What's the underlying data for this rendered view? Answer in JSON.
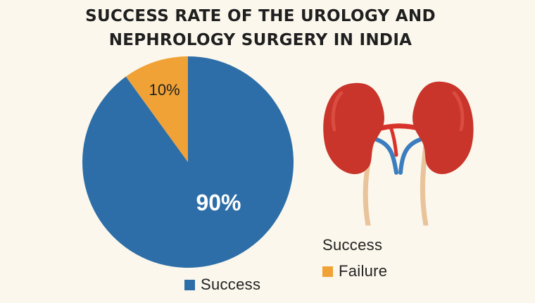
{
  "title_lines": [
    "SUCCESS RATE OF THE UROLOGY AND",
    "NEPHROLOGY SURGERY IN INDIA"
  ],
  "side_label": "Success",
  "colors": {
    "success": "#2d6ea8",
    "failure": "#f0a236",
    "kidney": "#c9342b",
    "artery": "#d8332b",
    "vein": "#3b7dbf",
    "ureter": "#e9c39a"
  },
  "icons": [
    "kidney-illustration-icon"
  ],
  "chart_data": {
    "type": "pie",
    "title": "SUCCESS RATE OF THE UROLOGY AND NEPHROLOGY SURGERY IN INDIA",
    "slices": [
      {
        "name": "Success",
        "value": 90,
        "label": "90%"
      },
      {
        "name": "Failure",
        "value": 10,
        "label": "10%"
      }
    ],
    "legend": [
      {
        "name": "Failure",
        "placement": "right"
      },
      {
        "name": "Success",
        "placement": "bottom"
      }
    ]
  }
}
